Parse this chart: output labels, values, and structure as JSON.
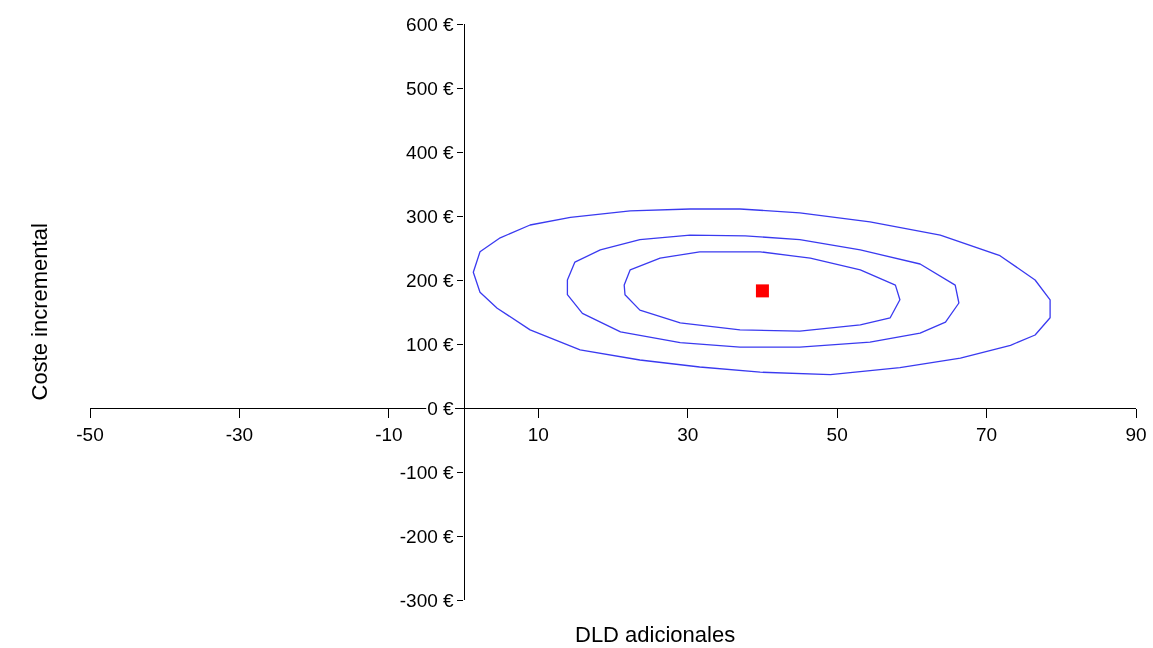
{
  "chart_data": {
    "type": "scatter",
    "xlabel": "DLD adicionales",
    "ylabel": "Coste incremental",
    "xlim": [
      -50,
      90
    ],
    "ylim": [
      -300,
      600
    ],
    "xticks": [
      -50,
      -30,
      -10,
      10,
      30,
      50,
      70,
      90
    ],
    "yticks": [
      {
        "value": -300,
        "label": "-300 €"
      },
      {
        "value": -200,
        "label": "-200 €"
      },
      {
        "value": -100,
        "label": "-100 €"
      },
      {
        "value": 0,
        "label": "0 €"
      },
      {
        "value": 100,
        "label": "100 €"
      },
      {
        "value": 200,
        "label": "200 €"
      },
      {
        "value": 300,
        "label": "300 €"
      },
      {
        "value": 400,
        "label": "400 €"
      },
      {
        "value": 500,
        "label": "500 €"
      },
      {
        "value": 600,
        "label": "600 €"
      }
    ],
    "grid": false,
    "marker": "square",
    "series": [
      {
        "color": "#ff0000",
        "x": [
          40
        ],
        "values": [
          183
        ]
      }
    ]
  }
}
